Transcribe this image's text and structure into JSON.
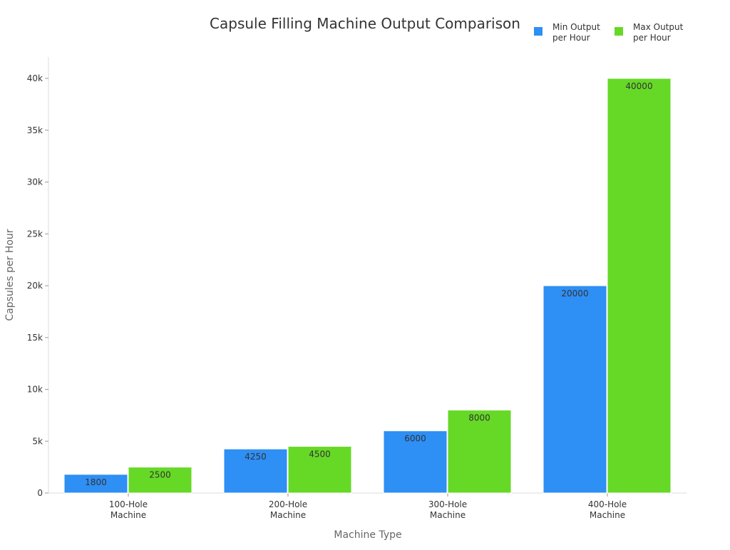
{
  "chart_data": {
    "type": "bar",
    "title": "Capsule Filling Machine Output Comparison",
    "xlabel": "Machine Type",
    "ylabel": "Capsules per Hour",
    "ylim": [
      0,
      42000
    ],
    "yticks": [
      0,
      5000,
      10000,
      15000,
      20000,
      25000,
      30000,
      35000,
      40000
    ],
    "ytick_labels": [
      "0",
      "5k",
      "10k",
      "15k",
      "20k",
      "25k",
      "30k",
      "35k",
      "40k"
    ],
    "categories": [
      [
        "100-Hole",
        "Machine"
      ],
      [
        "200-Hole",
        "Machine"
      ],
      [
        "300-Hole",
        "Machine"
      ],
      [
        "400-Hole",
        "Machine"
      ]
    ],
    "series": [
      {
        "name": [
          "Min Output",
          "per Hour"
        ],
        "color": "#2E8FF4",
        "values": [
          1800,
          4250,
          6000,
          20000
        ],
        "labels": [
          "1800",
          "4250",
          "6000",
          "20000"
        ]
      },
      {
        "name": [
          "Max Output",
          "per Hour"
        ],
        "color": "#66D927",
        "values": [
          2500,
          4500,
          8000,
          40000
        ],
        "labels": [
          "2500",
          "4500",
          "8000",
          "40000"
        ]
      }
    ],
    "grid": false,
    "legend_position": "top-right"
  }
}
